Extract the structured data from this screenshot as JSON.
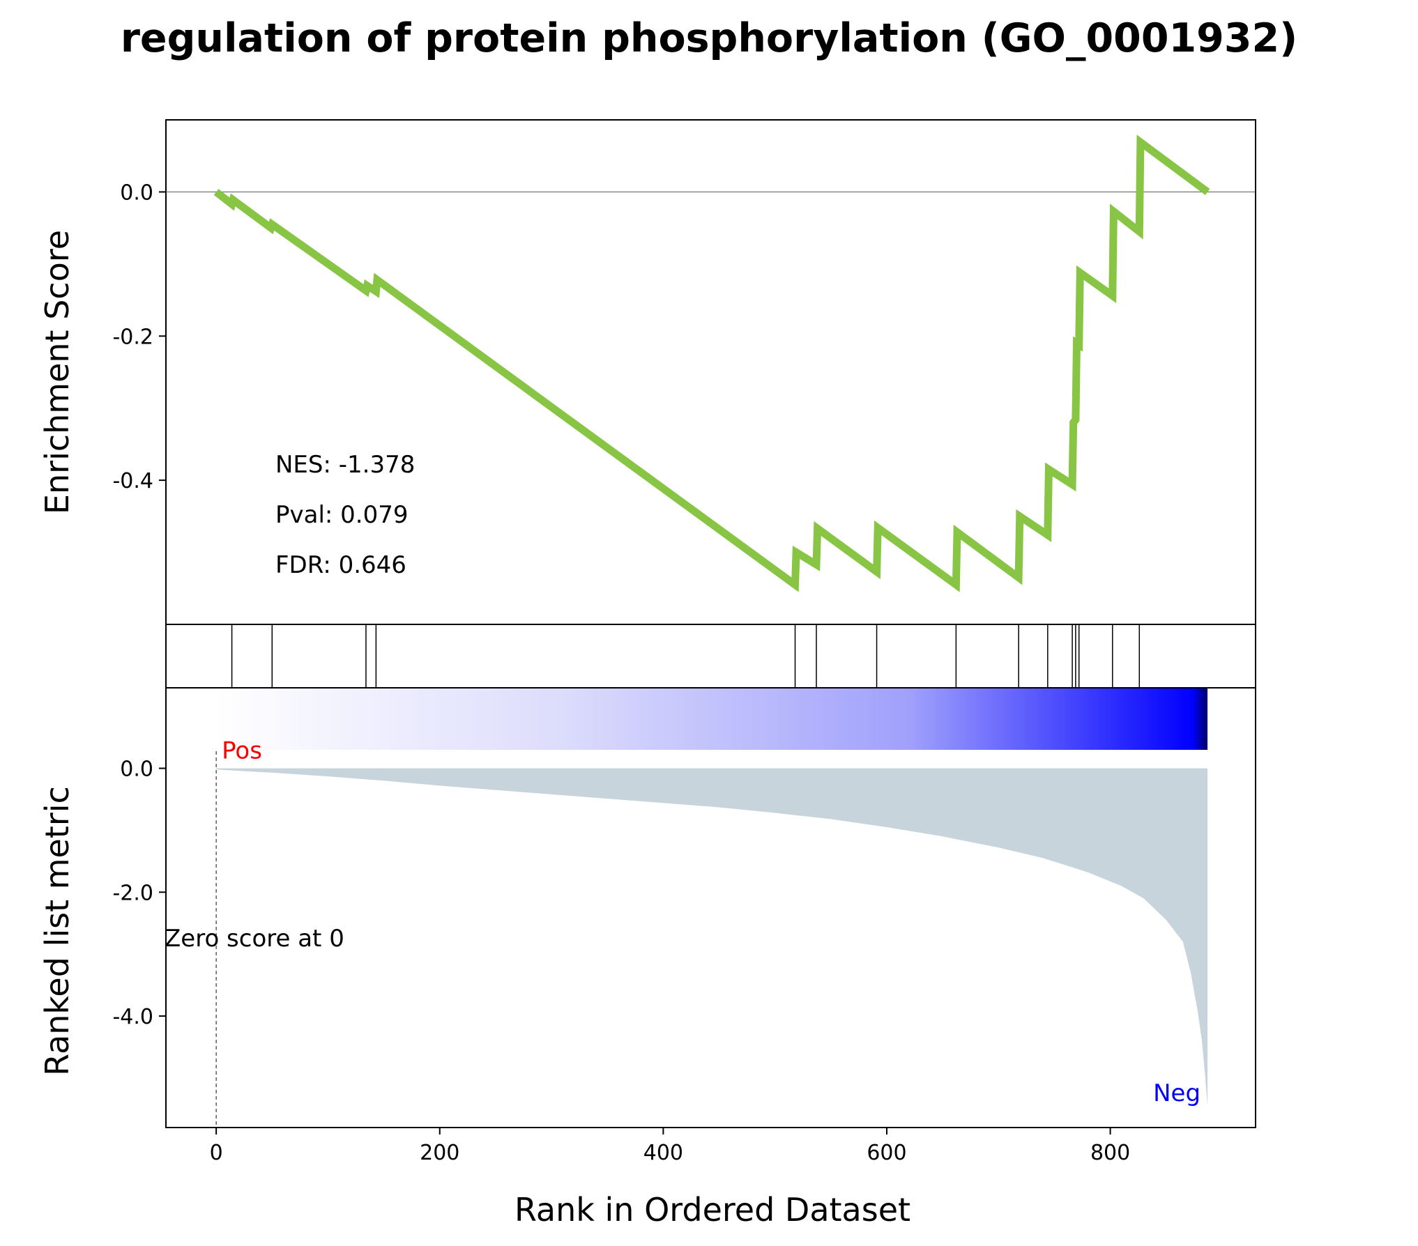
{
  "chart_data": {
    "type": "line",
    "title": "regulation of protein phosphorylation (GO_0001932)",
    "xlabel": "Rank in Ordered Dataset",
    "xlim": [
      -45,
      930
    ],
    "xticks": [
      0,
      200,
      400,
      600,
      800
    ],
    "xtick_labels": [
      "0",
      "200",
      "400",
      "600",
      "800"
    ],
    "n_genes": 887,
    "line_color": "#88c544",
    "heatmap_colors": [
      "#ffffff",
      "#dcdcfc",
      "#a0a0fc",
      "#0000ff",
      "#000066"
    ],
    "fill_color": "#c8d4dc",
    "es_panel": {
      "ylabel": "Enrichment Score",
      "ylim": [
        -0.6,
        0.1
      ],
      "yticks": [
        0.0,
        -0.2,
        -0.4
      ],
      "ytick_labels": [
        "0.0",
        "-0.2",
        "-0.4"
      ],
      "es_curve": [
        [
          0,
          0.0
        ],
        [
          14,
          -0.017
        ],
        [
          15,
          -0.011
        ],
        [
          49,
          -0.05
        ],
        [
          50,
          -0.045
        ],
        [
          134,
          -0.137
        ],
        [
          135,
          -0.13
        ],
        [
          143,
          -0.138
        ],
        [
          144,
          -0.122
        ],
        [
          518,
          -0.545
        ],
        [
          519,
          -0.5
        ],
        [
          537,
          -0.517
        ],
        [
          538,
          -0.467
        ],
        [
          591,
          -0.527
        ],
        [
          592,
          -0.466
        ],
        [
          662,
          -0.545
        ],
        [
          663,
          -0.472
        ],
        [
          718,
          -0.535
        ],
        [
          719,
          -0.45
        ],
        [
          744,
          -0.476
        ],
        [
          745,
          -0.385
        ],
        [
          766,
          -0.406
        ],
        [
          767,
          -0.32
        ],
        [
          769,
          -0.316
        ],
        [
          770,
          -0.21
        ],
        [
          772,
          -0.212
        ],
        [
          773,
          -0.112
        ],
        [
          802,
          -0.144
        ],
        [
          803,
          -0.027
        ],
        [
          826,
          -0.055
        ],
        [
          827,
          0.069
        ],
        [
          887,
          0.0
        ]
      ],
      "annotations": {
        "nes": "NES: -1.378",
        "pval": "Pval: 0.079",
        "fdr": "FDR: 0.646"
      }
    },
    "hit_ranks": [
      14,
      50,
      134,
      143,
      518,
      537,
      591,
      662,
      718,
      744,
      766,
      769,
      772,
      802,
      826
    ],
    "metric_panel": {
      "ylabel": "Ranked list metric",
      "ylim": [
        -5.8,
        1.3
      ],
      "yticks": [
        0.0,
        -2.0,
        -4.0
      ],
      "ytick_labels": [
        "0.0",
        "-2.0",
        "-4.0"
      ],
      "metric_curve": [
        [
          0,
          -0.02
        ],
        [
          50,
          -0.07
        ],
        [
          100,
          -0.13
        ],
        [
          150,
          -0.2
        ],
        [
          200,
          -0.28
        ],
        [
          250,
          -0.35
        ],
        [
          300,
          -0.42
        ],
        [
          350,
          -0.49
        ],
        [
          400,
          -0.56
        ],
        [
          450,
          -0.63
        ],
        [
          500,
          -0.72
        ],
        [
          550,
          -0.82
        ],
        [
          600,
          -0.95
        ],
        [
          650,
          -1.1
        ],
        [
          700,
          -1.28
        ],
        [
          740,
          -1.45
        ],
        [
          780,
          -1.68
        ],
        [
          810,
          -1.9
        ],
        [
          830,
          -2.1
        ],
        [
          850,
          -2.45
        ],
        [
          865,
          -2.8
        ],
        [
          872,
          -3.3
        ],
        [
          878,
          -3.9
        ],
        [
          882,
          -4.4
        ],
        [
          885,
          -5.0
        ],
        [
          887,
          -5.45
        ]
      ],
      "pos_label": "Pos",
      "neg_label": "Neg",
      "zero_label": "Zero score at 0",
      "zero_rank": 0,
      "pos_color": "#ff0000",
      "neg_color": "#0000ff"
    }
  }
}
